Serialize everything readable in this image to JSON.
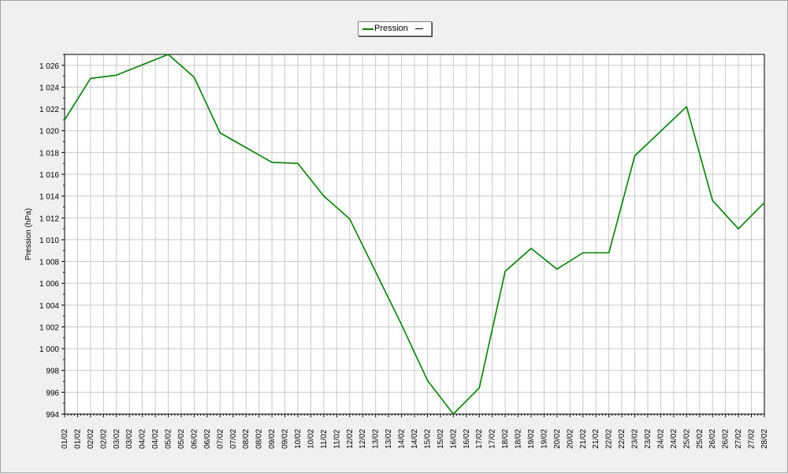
{
  "chart_data": {
    "type": "line",
    "ylabel": "Pression (hPa)",
    "ylim": [
      994,
      1027
    ],
    "yticks": [
      994,
      996,
      998,
      1000,
      1002,
      1004,
      1006,
      1008,
      1010,
      1012,
      1014,
      1016,
      1018,
      1020,
      1022,
      1024,
      1026
    ],
    "ytick_labels": [
      "994",
      "996",
      "998",
      "1 000",
      "1 002",
      "1 004",
      "1 006",
      "1 008",
      "1 010",
      "1 012",
      "1 014",
      "1 016",
      "1 018",
      "1 020",
      "1 022",
      "1 024",
      "1 026"
    ],
    "x_tick_labels": [
      "01/02",
      "01/02",
      "02/02",
      "02/02",
      "03/02",
      "03/02",
      "04/02",
      "04/02",
      "05/02",
      "05/02",
      "06/02",
      "06/02",
      "07/02",
      "07/02",
      "08/02",
      "08/02",
      "09/02",
      "09/02",
      "10/02",
      "10/02",
      "11/02",
      "11/02",
      "12/02",
      "12/02",
      "13/02",
      "13/02",
      "14/02",
      "14/02",
      "15/02",
      "15/02",
      "16/02",
      "16/02",
      "17/02",
      "17/02",
      "18/02",
      "18/02",
      "19/02",
      "19/02",
      "20/02",
      "20/02",
      "21/02",
      "21/02",
      "22/02",
      "22/02",
      "23/02",
      "23/02",
      "24/02",
      "24/02",
      "25/02",
      "25/02",
      "26/02",
      "26/02",
      "27/02",
      "27/02",
      "28/02"
    ],
    "grid": true,
    "legend_position": "top-center",
    "series": [
      {
        "name": "Pression",
        "color": "#008000",
        "points": [
          {
            "x": "01/02",
            "y": 1021.0
          },
          {
            "x": "02/02",
            "y": 1024.8
          },
          {
            "x": "03/02",
            "y": 1025.1
          },
          {
            "x": "05/02",
            "y": 1027.0
          },
          {
            "x": "06/02",
            "y": 1024.9
          },
          {
            "x": "07/02",
            "y": 1019.8
          },
          {
            "x": "09/02",
            "y": 1017.1
          },
          {
            "x": "10/02",
            "y": 1017.0
          },
          {
            "x": "11/02",
            "y": 1014.0
          },
          {
            "x": "12/02",
            "y": 1011.9
          },
          {
            "x": "14/02",
            "y": 1002.2
          },
          {
            "x": "15/02",
            "y": 997.1
          },
          {
            "x": "16/02",
            "y": 994.0
          },
          {
            "x": "17/02",
            "y": 996.4
          },
          {
            "x": "18/02",
            "y": 1007.1
          },
          {
            "x": "19/02",
            "y": 1009.2
          },
          {
            "x": "20/02",
            "y": 1007.3
          },
          {
            "x": "21/02",
            "y": 1008.8
          },
          {
            "x": "22/02",
            "y": 1008.8
          },
          {
            "x": "23/02",
            "y": 1017.7
          },
          {
            "x": "25/02",
            "y": 1022.2
          },
          {
            "x": "26/02",
            "y": 1013.6
          },
          {
            "x": "27/02",
            "y": 1011.0
          },
          {
            "x": "28/02",
            "y": 1013.4
          }
        ]
      }
    ]
  },
  "legend": {
    "label": "Pression",
    "line_color": "#008000"
  }
}
